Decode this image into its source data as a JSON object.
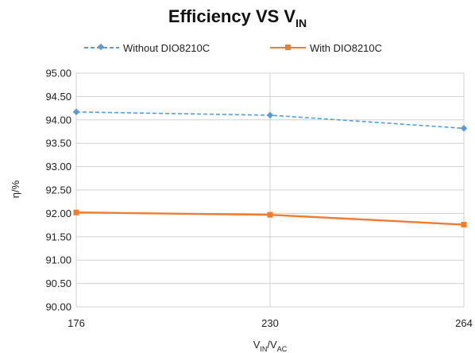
{
  "chart_data": {
    "type": "line",
    "title": {
      "main": "Efficiency VS V",
      "subscript": "IN"
    },
    "xlabel": {
      "main": "V",
      "sub1": "IN",
      "mid": "/V",
      "sub2": "AC"
    },
    "ylabel": "η/%",
    "categories": [
      "176",
      "230",
      "264"
    ],
    "y_ticks": [
      "95.00",
      "94.50",
      "94.00",
      "93.50",
      "93.00",
      "92.50",
      "92.00",
      "91.50",
      "91.00",
      "90.50",
      "90.00"
    ],
    "ylim": [
      90.0,
      95.0
    ],
    "grid": true,
    "legend_position": "top",
    "series": [
      {
        "name": "Without DIO8210C",
        "values": [
          94.17,
          94.1,
          93.82
        ],
        "color": "#5b9bd5",
        "line_style": "dashed",
        "marker": "diamond"
      },
      {
        "name": "With DIO8210C",
        "values": [
          92.02,
          91.97,
          91.76
        ],
        "color": "#ed7d31",
        "line_style": "solid",
        "marker": "square"
      }
    ]
  }
}
